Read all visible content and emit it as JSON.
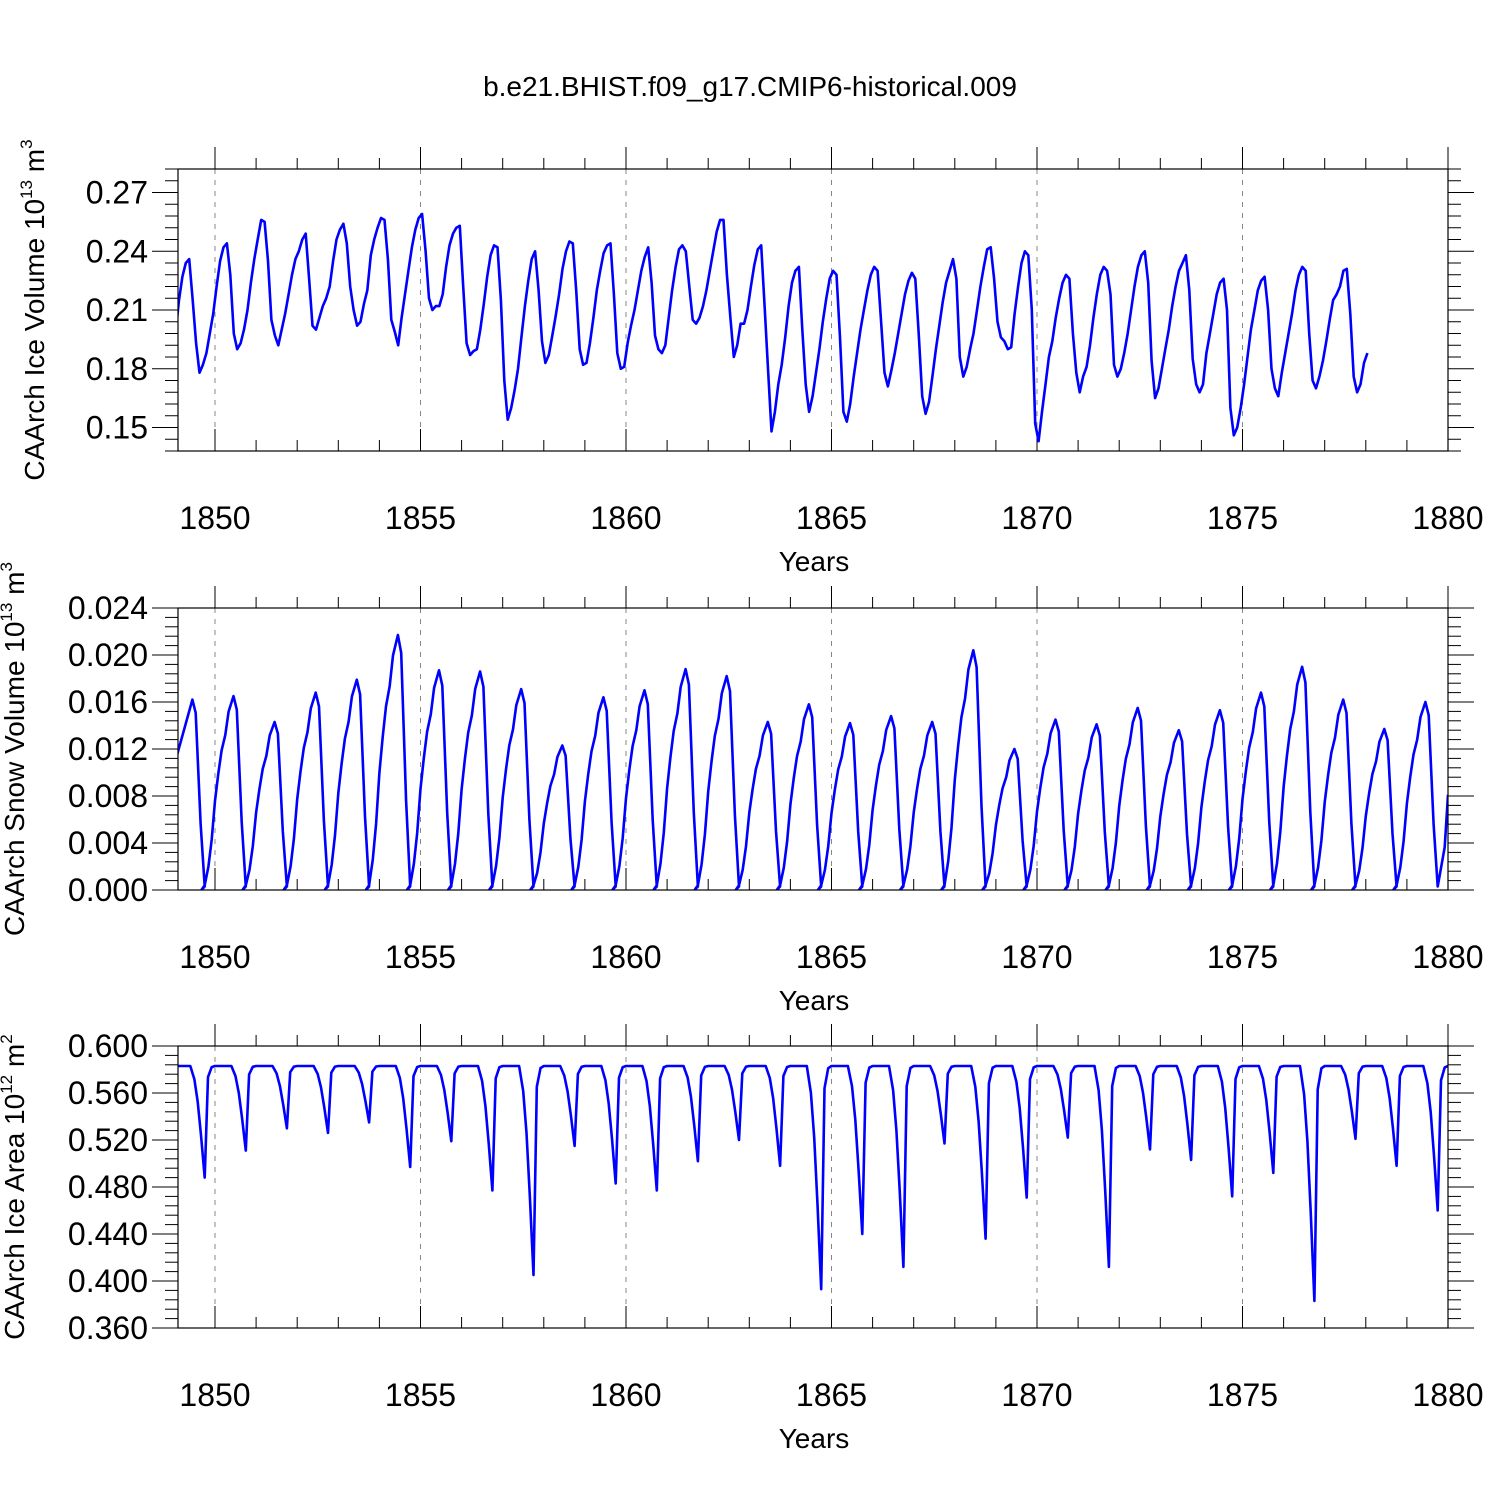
{
  "figure": {
    "title": "b.e21.BHIST.f09_g17.CMIP6-historical.009"
  },
  "colors": {
    "line": "#0000ff",
    "axes": "#000000",
    "grid": "#888888"
  },
  "chart_data": [
    {
      "type": "line",
      "name": "ice-volume",
      "xlabel": "Years",
      "ylabel": {
        "main": "CAArch Ice Volume 10",
        "exp": "13",
        "unit": " m",
        "unit_exp": "3"
      },
      "xlim": [
        1849.1,
        1880.0
      ],
      "ylim": [
        0.138,
        0.282
      ],
      "xticks": [
        1850,
        1855,
        1860,
        1865,
        1870,
        1875,
        1880
      ],
      "xtick_labels": [
        "1850",
        "1855",
        "1860",
        "1865",
        "1870",
        "1875",
        "1880"
      ],
      "yticks": [
        0.15,
        0.18,
        0.21,
        0.24,
        0.27
      ],
      "ytick_labels": [
        "0.15",
        "0.18",
        "0.21",
        "0.24",
        "0.27"
      ],
      "gridlines_x": [
        1850,
        1855,
        1860,
        1865,
        1870,
        1875
      ],
      "series": [
        {
          "name": "CAArch Ice Volume",
          "start_year": 1849.04,
          "step": 0.08333,
          "values": [
            0.198,
            0.215,
            0.227,
            0.234,
            0.236,
            0.215,
            0.193,
            0.178,
            0.182,
            0.188,
            0.198,
            0.208,
            0.222,
            0.235,
            0.242,
            0.244,
            0.228,
            0.198,
            0.19,
            0.193,
            0.2,
            0.21,
            0.224,
            0.236,
            0.246,
            0.256,
            0.255,
            0.235,
            0.205,
            0.197,
            0.192,
            0.2,
            0.208,
            0.218,
            0.228,
            0.236,
            0.24,
            0.246,
            0.249,
            0.226,
            0.202,
            0.2,
            0.206,
            0.212,
            0.216,
            0.222,
            0.235,
            0.246,
            0.251,
            0.254,
            0.244,
            0.222,
            0.21,
            0.202,
            0.204,
            0.213,
            0.22,
            0.238,
            0.246,
            0.252,
            0.257,
            0.256,
            0.236,
            0.205,
            0.199,
            0.192,
            0.206,
            0.218,
            0.23,
            0.242,
            0.251,
            0.257,
            0.259,
            0.24,
            0.216,
            0.21,
            0.212,
            0.212,
            0.218,
            0.232,
            0.243,
            0.249,
            0.252,
            0.253,
            0.222,
            0.193,
            0.187,
            0.189,
            0.19,
            0.2,
            0.213,
            0.227,
            0.238,
            0.243,
            0.242,
            0.215,
            0.174,
            0.154,
            0.16,
            0.169,
            0.18,
            0.196,
            0.212,
            0.225,
            0.236,
            0.24,
            0.22,
            0.194,
            0.183,
            0.187,
            0.197,
            0.207,
            0.218,
            0.231,
            0.24,
            0.245,
            0.244,
            0.22,
            0.19,
            0.182,
            0.183,
            0.193,
            0.206,
            0.22,
            0.23,
            0.239,
            0.243,
            0.244,
            0.218,
            0.188,
            0.18,
            0.181,
            0.193,
            0.202,
            0.21,
            0.22,
            0.23,
            0.237,
            0.242,
            0.224,
            0.197,
            0.19,
            0.188,
            0.192,
            0.206,
            0.22,
            0.232,
            0.241,
            0.243,
            0.24,
            0.222,
            0.205,
            0.203,
            0.206,
            0.212,
            0.22,
            0.23,
            0.24,
            0.25,
            0.256,
            0.256,
            0.228,
            0.206,
            0.186,
            0.192,
            0.203,
            0.203,
            0.21,
            0.222,
            0.233,
            0.241,
            0.243,
            0.212,
            0.18,
            0.148,
            0.158,
            0.172,
            0.182,
            0.196,
            0.212,
            0.224,
            0.23,
            0.232,
            0.2,
            0.172,
            0.158,
            0.166,
            0.178,
            0.19,
            0.204,
            0.216,
            0.226,
            0.23,
            0.228,
            0.196,
            0.158,
            0.153,
            0.162,
            0.176,
            0.188,
            0.2,
            0.21,
            0.22,
            0.228,
            0.232,
            0.23,
            0.204,
            0.178,
            0.171,
            0.179,
            0.188,
            0.198,
            0.208,
            0.218,
            0.225,
            0.229,
            0.226,
            0.198,
            0.166,
            0.157,
            0.163,
            0.176,
            0.19,
            0.202,
            0.214,
            0.224,
            0.23,
            0.236,
            0.226,
            0.186,
            0.176,
            0.181,
            0.19,
            0.198,
            0.21,
            0.222,
            0.232,
            0.241,
            0.242,
            0.226,
            0.204,
            0.196,
            0.194,
            0.19,
            0.191,
            0.208,
            0.222,
            0.234,
            0.24,
            0.238,
            0.21,
            0.152,
            0.143,
            0.158,
            0.172,
            0.186,
            0.194,
            0.206,
            0.216,
            0.224,
            0.228,
            0.226,
            0.198,
            0.178,
            0.168,
            0.176,
            0.181,
            0.192,
            0.206,
            0.218,
            0.228,
            0.232,
            0.23,
            0.218,
            0.182,
            0.176,
            0.18,
            0.188,
            0.198,
            0.21,
            0.222,
            0.232,
            0.238,
            0.24,
            0.224,
            0.184,
            0.165,
            0.17,
            0.18,
            0.19,
            0.2,
            0.212,
            0.222,
            0.23,
            0.234,
            0.238,
            0.22,
            0.185,
            0.172,
            0.168,
            0.172,
            0.188,
            0.198,
            0.208,
            0.218,
            0.224,
            0.226,
            0.21,
            0.16,
            0.146,
            0.15,
            0.16,
            0.172,
            0.186,
            0.2,
            0.21,
            0.22,
            0.225,
            0.227,
            0.21,
            0.18,
            0.17,
            0.166,
            0.178,
            0.188,
            0.198,
            0.208,
            0.22,
            0.228,
            0.232,
            0.23,
            0.198,
            0.174,
            0.17,
            0.176,
            0.184,
            0.194,
            0.205,
            0.215,
            0.218,
            0.222,
            0.23,
            0.231,
            0.208,
            0.176,
            0.168,
            0.172,
            0.183,
            0.188
          ]
        }
      ]
    },
    {
      "type": "line",
      "name": "snow-volume",
      "xlabel": "Years",
      "ylabel": {
        "main": "CAArch Snow Volume 10",
        "exp": "13",
        "unit": " m",
        "unit_exp": "3"
      },
      "xlim": [
        1849.1,
        1880.0
      ],
      "ylim": [
        0.0,
        0.024
      ],
      "xticks": [
        1850,
        1855,
        1860,
        1865,
        1870,
        1875,
        1880
      ],
      "xtick_labels": [
        "1850",
        "1855",
        "1860",
        "1865",
        "1870",
        "1875",
        "1880"
      ],
      "yticks": [
        0.0,
        0.004,
        0.008,
        0.012,
        0.016,
        0.02,
        0.024
      ],
      "ytick_labels": [
        "0.000",
        "0.004",
        "0.008",
        "0.012",
        "0.016",
        "0.020",
        "0.024"
      ],
      "gridlines_x": [
        1850,
        1855,
        1860,
        1865,
        1870,
        1875
      ],
      "series": [
        {
          "name": "CAArch Snow Volume",
          "start_year": 1849.04,
          "step": 0.08333,
          "peaks": [
            {
              "year": 1849.45,
              "value": 0.0162
            },
            {
              "year": 1850.45,
              "value": 0.0165
            },
            {
              "year": 1851.45,
              "value": 0.0143
            },
            {
              "year": 1852.45,
              "value": 0.0168
            },
            {
              "year": 1853.45,
              "value": 0.0179
            },
            {
              "year": 1854.45,
              "value": 0.0217
            },
            {
              "year": 1855.45,
              "value": 0.0187
            },
            {
              "year": 1856.45,
              "value": 0.0186
            },
            {
              "year": 1857.45,
              "value": 0.0171
            },
            {
              "year": 1858.45,
              "value": 0.0123
            },
            {
              "year": 1859.45,
              "value": 0.0164
            },
            {
              "year": 1860.45,
              "value": 0.017
            },
            {
              "year": 1861.45,
              "value": 0.0188
            },
            {
              "year": 1862.45,
              "value": 0.0182
            },
            {
              "year": 1863.45,
              "value": 0.0143
            },
            {
              "year": 1864.45,
              "value": 0.0158
            },
            {
              "year": 1865.45,
              "value": 0.0142
            },
            {
              "year": 1866.45,
              "value": 0.0148
            },
            {
              "year": 1867.45,
              "value": 0.0143
            },
            {
              "year": 1868.45,
              "value": 0.0204
            },
            {
              "year": 1869.45,
              "value": 0.012
            },
            {
              "year": 1870.45,
              "value": 0.0145
            },
            {
              "year": 1871.45,
              "value": 0.0141
            },
            {
              "year": 1872.45,
              "value": 0.0155
            },
            {
              "year": 1873.45,
              "value": 0.0136
            },
            {
              "year": 1874.45,
              "value": 0.0153
            },
            {
              "year": 1875.45,
              "value": 0.0168
            },
            {
              "year": 1876.45,
              "value": 0.019
            },
            {
              "year": 1877.45,
              "value": 0.0162
            },
            {
              "year": 1878.45,
              "value": 0.0137
            },
            {
              "year": 1879.45,
              "value": 0.016
            }
          ],
          "minimum_value": 0.0,
          "end_value": 0.0081
        }
      ]
    },
    {
      "type": "line",
      "name": "ice-area",
      "xlabel": "Years",
      "ylabel": {
        "main": "CAArch Ice Area 10",
        "exp": "12",
        "unit": " m",
        "unit_exp": "2"
      },
      "xlim": [
        1849.1,
        1880.0
      ],
      "ylim": [
        0.36,
        0.6
      ],
      "xticks": [
        1850,
        1855,
        1860,
        1865,
        1870,
        1875,
        1880
      ],
      "xtick_labels": [
        "1850",
        "1855",
        "1860",
        "1865",
        "1870",
        "1875",
        "1880"
      ],
      "yticks": [
        0.36,
        0.4,
        0.44,
        0.48,
        0.52,
        0.56,
        0.6
      ],
      "ytick_labels": [
        "0.360",
        "0.400",
        "0.440",
        "0.480",
        "0.520",
        "0.560",
        "0.600"
      ],
      "gridlines_x": [
        1850,
        1855,
        1860,
        1865,
        1870,
        1875
      ],
      "series": [
        {
          "name": "CAArch Ice Area",
          "start_year": 1849.04,
          "step": 0.08333,
          "plateau_value": 0.583,
          "minima": [
            {
              "year": 1849.75,
              "value": 0.488
            },
            {
              "year": 1850.75,
              "value": 0.511
            },
            {
              "year": 1851.75,
              "value": 0.53
            },
            {
              "year": 1852.75,
              "value": 0.526
            },
            {
              "year": 1853.75,
              "value": 0.535
            },
            {
              "year": 1854.75,
              "value": 0.497
            },
            {
              "year": 1855.75,
              "value": 0.519
            },
            {
              "year": 1856.75,
              "value": 0.477
            },
            {
              "year": 1857.75,
              "value": 0.405
            },
            {
              "year": 1858.75,
              "value": 0.515
            },
            {
              "year": 1859.75,
              "value": 0.483
            },
            {
              "year": 1860.75,
              "value": 0.477
            },
            {
              "year": 1861.75,
              "value": 0.502
            },
            {
              "year": 1862.75,
              "value": 0.52
            },
            {
              "year": 1863.75,
              "value": 0.498
            },
            {
              "year": 1864.75,
              "value": 0.393
            },
            {
              "year": 1865.75,
              "value": 0.44
            },
            {
              "year": 1866.75,
              "value": 0.412
            },
            {
              "year": 1867.75,
              "value": 0.517
            },
            {
              "year": 1868.75,
              "value": 0.436
            },
            {
              "year": 1869.75,
              "value": 0.471
            },
            {
              "year": 1870.75,
              "value": 0.522
            },
            {
              "year": 1871.75,
              "value": 0.412
            },
            {
              "year": 1872.75,
              "value": 0.512
            },
            {
              "year": 1873.75,
              "value": 0.503
            },
            {
              "year": 1874.75,
              "value": 0.472
            },
            {
              "year": 1875.75,
              "value": 0.492
            },
            {
              "year": 1876.75,
              "value": 0.383
            },
            {
              "year": 1877.75,
              "value": 0.521
            },
            {
              "year": 1878.75,
              "value": 0.498
            },
            {
              "year": 1879.75,
              "value": 0.46
            }
          ]
        }
      ]
    }
  ]
}
